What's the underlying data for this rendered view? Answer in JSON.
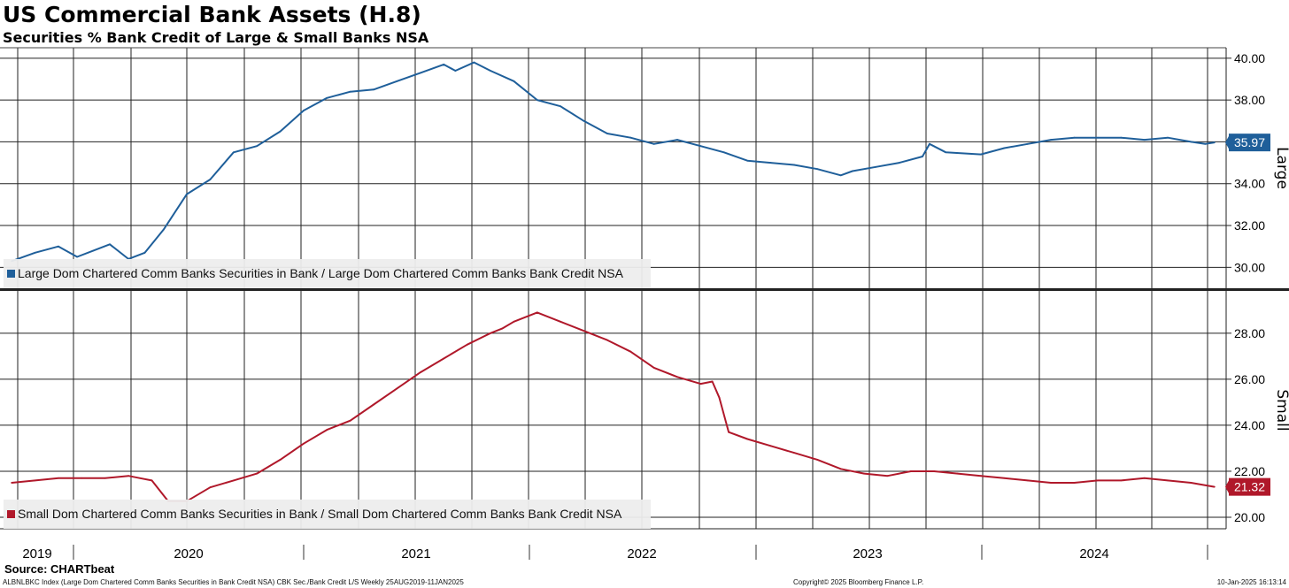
{
  "title": "US Commercial Bank Assets (H.8)",
  "subtitle": "Securities % Bank Credit of Large & Small Banks NSA",
  "source": "Source: CHARTbeat",
  "footer": {
    "left": "ALBNLBKC Index (Large Dom Chartered Comm Banks Securities in Bank Credit NSA) CBK Sec./Bank Credit L/S  Weekly 25AUG2019-11JAN2025",
    "middle": "Copyright© 2025 Bloomberg Finance L.P.",
    "right": "10-Jan-2025 16:13:14"
  },
  "colors": {
    "large": "#1f5f9a",
    "small": "#b0182a",
    "grid": "#222222"
  },
  "chart_data": [
    {
      "type": "line",
      "panel": "top",
      "axis_label": "Large",
      "legend": "Large Dom Chartered Comm Banks Securities in Bank / Large Dom Chartered Comm Banks Bank Credit NSA",
      "last_value": "35.97",
      "ylim": [
        29.0,
        40.5
      ],
      "yticks": [
        "30.00",
        "32.00",
        "34.00",
        "36.00",
        "38.00",
        "40.00"
      ],
      "x": [
        2019.65,
        2019.75,
        2019.85,
        2019.93,
        2020.0,
        2020.07,
        2020.15,
        2020.22,
        2020.3,
        2020.4,
        2020.5,
        2020.6,
        2020.7,
        2020.8,
        2020.9,
        2021.0,
        2021.1,
        2021.2,
        2021.3,
        2021.4,
        2021.5,
        2021.55,
        2021.63,
        2021.7,
        2021.8,
        2021.9,
        2022.0,
        2022.1,
        2022.2,
        2022.3,
        2022.4,
        2022.5,
        2022.6,
        2022.7,
        2022.8,
        2022.9,
        2023.0,
        2023.1,
        2023.2,
        2023.25,
        2023.35,
        2023.45,
        2023.55,
        2023.58,
        2023.65,
        2023.8,
        2023.9,
        2024.0,
        2024.1,
        2024.2,
        2024.3,
        2024.4,
        2024.5,
        2024.6,
        2024.7,
        2024.76,
        2024.8
      ],
      "y": [
        30.3,
        30.7,
        31.0,
        30.5,
        30.8,
        31.1,
        30.4,
        30.7,
        31.8,
        33.5,
        34.2,
        35.5,
        35.8,
        36.5,
        37.5,
        38.1,
        38.4,
        38.5,
        38.9,
        39.3,
        39.7,
        39.4,
        39.8,
        39.4,
        38.9,
        38.0,
        37.7,
        37.0,
        36.4,
        36.2,
        35.9,
        36.1,
        35.8,
        35.5,
        35.1,
        35.0,
        34.9,
        34.7,
        34.4,
        34.6,
        34.8,
        35.0,
        35.3,
        35.9,
        35.5,
        35.4,
        35.7,
        35.9,
        36.1,
        36.2,
        36.2,
        36.2,
        36.1,
        36.2,
        36.0,
        35.9,
        35.97
      ]
    },
    {
      "type": "line",
      "panel": "bottom",
      "axis_label": "Small",
      "legend": "Small Dom Chartered Comm Banks Securities in Bank / Small Dom Chartered Comm Banks Bank Credit NSA",
      "last_value": "21.32",
      "ylim": [
        19.5,
        29.8
      ],
      "yticks": [
        "20.00",
        "22.00",
        "24.00",
        "26.00",
        "28.00"
      ],
      "x": [
        2019.65,
        2019.75,
        2019.85,
        2019.95,
        2020.05,
        2020.15,
        2020.2,
        2020.25,
        2020.32,
        2020.4,
        2020.5,
        2020.6,
        2020.7,
        2020.8,
        2020.9,
        2021.0,
        2021.1,
        2021.2,
        2021.3,
        2021.4,
        2021.5,
        2021.6,
        2021.7,
        2021.75,
        2021.8,
        2021.9,
        2022.0,
        2022.1,
        2022.2,
        2022.3,
        2022.4,
        2022.5,
        2022.6,
        2022.65,
        2022.68,
        2022.72,
        2022.8,
        2022.9,
        2023.0,
        2023.1,
        2023.2,
        2023.3,
        2023.4,
        2023.5,
        2023.6,
        2023.7,
        2023.8,
        2023.9,
        2024.0,
        2024.1,
        2024.2,
        2024.3,
        2024.4,
        2024.5,
        2024.6,
        2024.7,
        2024.8
      ],
      "y": [
        21.5,
        21.6,
        21.7,
        21.7,
        21.7,
        21.8,
        21.7,
        21.6,
        20.7,
        20.7,
        21.3,
        21.6,
        21.9,
        22.5,
        23.2,
        23.8,
        24.2,
        24.9,
        25.6,
        26.3,
        26.9,
        27.5,
        28.0,
        28.2,
        28.5,
        28.9,
        28.5,
        28.1,
        27.7,
        27.2,
        26.5,
        26.1,
        25.8,
        25.9,
        25.2,
        23.7,
        23.4,
        23.1,
        22.8,
        22.5,
        22.1,
        21.9,
        21.8,
        22.0,
        22.0,
        21.9,
        21.8,
        21.7,
        21.6,
        21.5,
        21.5,
        21.6,
        21.6,
        21.7,
        21.6,
        21.5,
        21.32
      ]
    }
  ],
  "x_axis": {
    "labels": [
      "2019",
      "2020",
      "2021",
      "2022",
      "2023",
      "2024"
    ],
    "xlim": [
      2019.6,
      2024.85
    ]
  }
}
